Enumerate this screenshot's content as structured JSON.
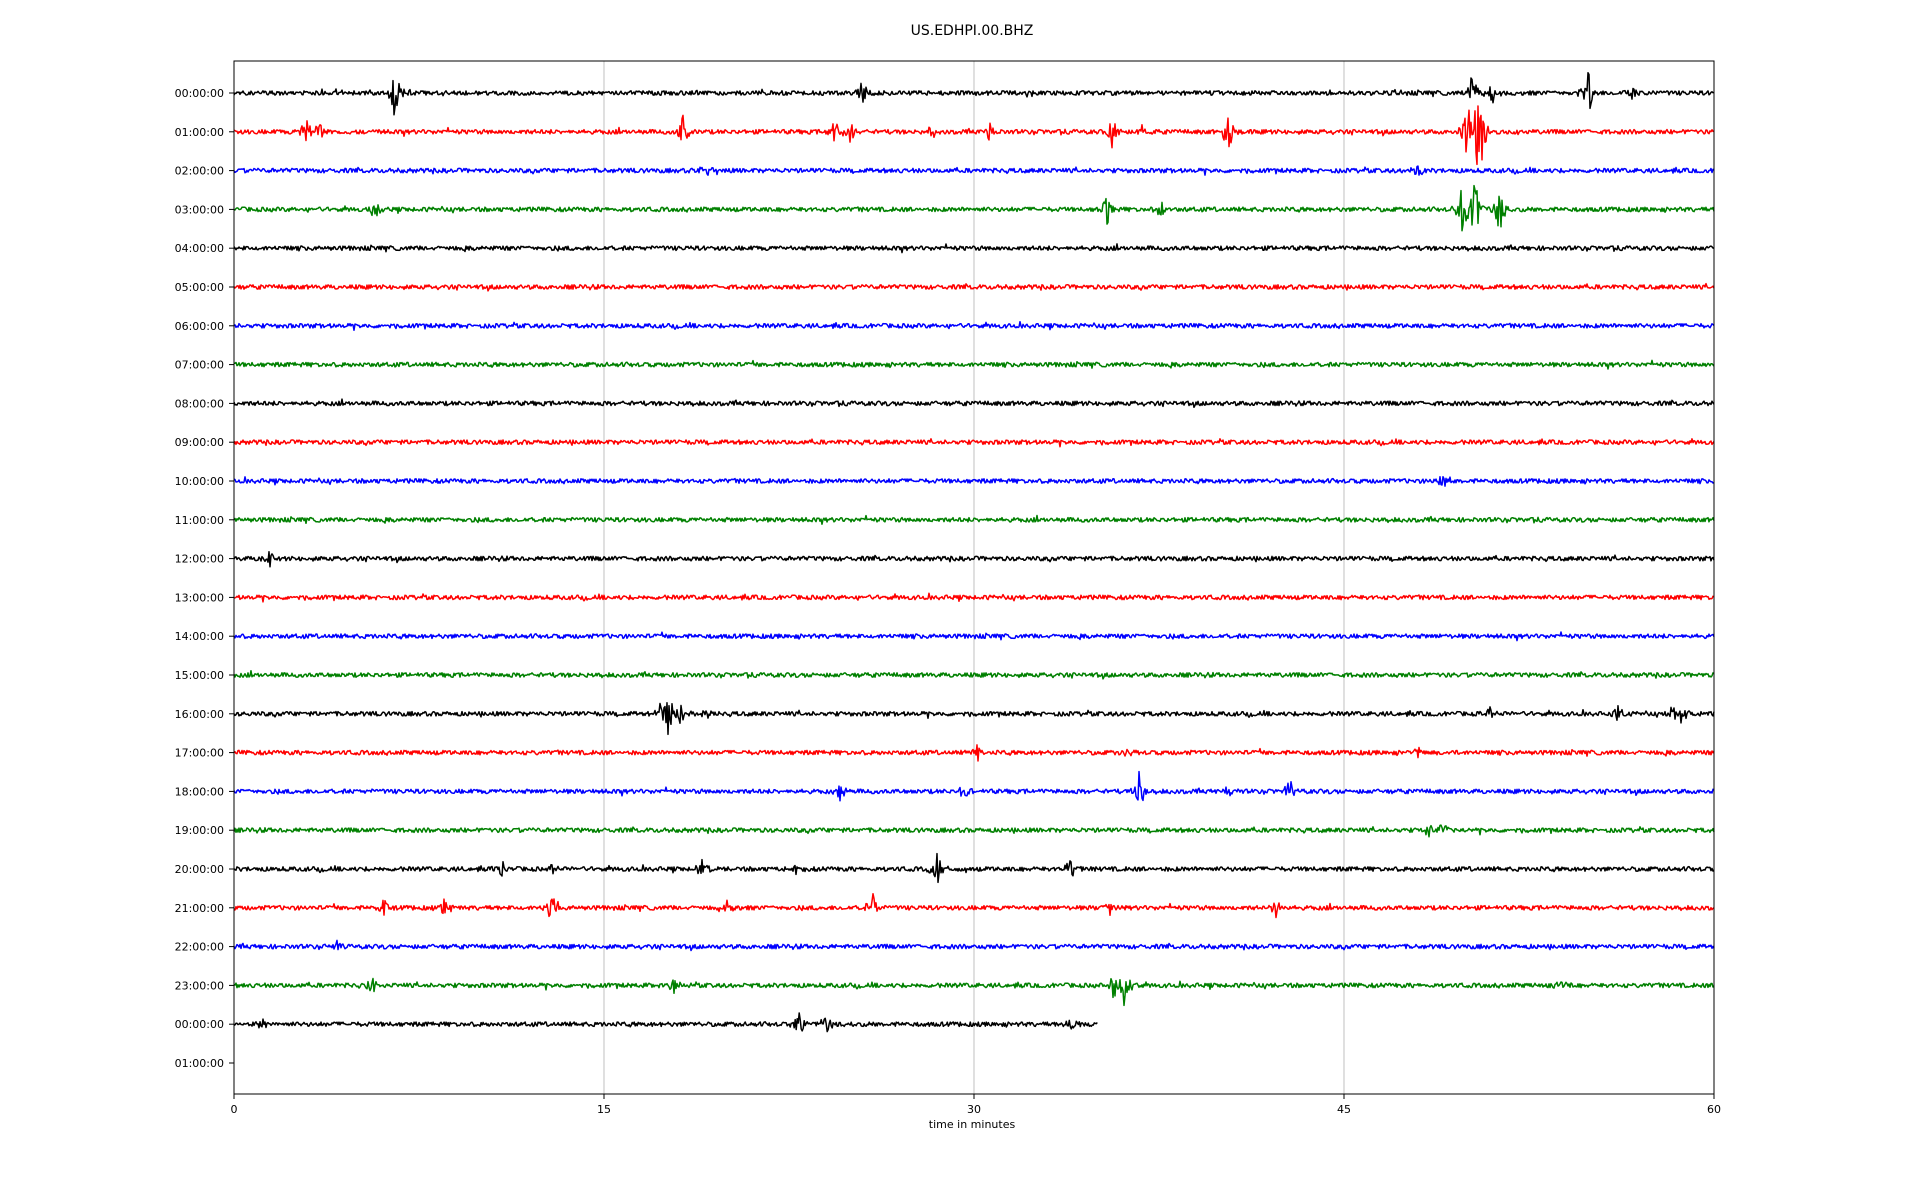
{
  "chart_data": {
    "type": "line",
    "title": "US.EDHPI.00.BHZ",
    "xlabel": "time in minutes",
    "ylabel": "",
    "xlim": [
      0,
      60
    ],
    "x_ticks": [
      "0",
      "15",
      "30",
      "45",
      "60"
    ],
    "x_grid": true,
    "y_grid": false,
    "legend": "none",
    "series_colors": [
      "#000000",
      "#ff0000",
      "#0000ff",
      "#008000"
    ],
    "rows": [
      {
        "label": "00:00:00",
        "color": "#000000",
        "end_minute": 60,
        "events": [
          {
            "t": 6.5,
            "amp": 30
          },
          {
            "t": 25.5,
            "amp": 16
          },
          {
            "t": 50.2,
            "amp": 20
          },
          {
            "t": 51.0,
            "amp": 14
          },
          {
            "t": 54.9,
            "amp": 26
          },
          {
            "t": 56.7,
            "amp": 8
          }
        ]
      },
      {
        "label": "01:00:00",
        "color": "#ff0000",
        "end_minute": 60,
        "events": [
          {
            "t": 2.9,
            "amp": 16
          },
          {
            "t": 3.5,
            "amp": 14
          },
          {
            "t": 18.2,
            "amp": 18
          },
          {
            "t": 24.4,
            "amp": 16
          },
          {
            "t": 25.0,
            "amp": 18
          },
          {
            "t": 28.3,
            "amp": 10
          },
          {
            "t": 30.6,
            "amp": 12
          },
          {
            "t": 35.6,
            "amp": 18
          },
          {
            "t": 36.9,
            "amp": 10
          },
          {
            "t": 40.3,
            "amp": 22
          },
          {
            "t": 50.0,
            "amp": 34
          },
          {
            "t": 50.5,
            "amp": 70
          }
        ]
      },
      {
        "label": "02:00:00",
        "color": "#0000ff",
        "end_minute": 60,
        "events": [
          {
            "t": 19.0,
            "amp": 8
          },
          {
            "t": 19.5,
            "amp": 10
          },
          {
            "t": 48.0,
            "amp": 8
          }
        ]
      },
      {
        "label": "03:00:00",
        "color": "#008000",
        "end_minute": 60,
        "events": [
          {
            "t": 5.7,
            "amp": 14
          },
          {
            "t": 35.4,
            "amp": 18
          },
          {
            "t": 37.6,
            "amp": 12
          },
          {
            "t": 49.8,
            "amp": 34
          },
          {
            "t": 50.3,
            "amp": 38
          },
          {
            "t": 51.3,
            "amp": 28
          }
        ]
      },
      {
        "label": "04:00:00",
        "color": "#000000",
        "end_minute": 60,
        "events": []
      },
      {
        "label": "05:00:00",
        "color": "#ff0000",
        "end_minute": 60,
        "events": []
      },
      {
        "label": "06:00:00",
        "color": "#0000ff",
        "end_minute": 60,
        "events": []
      },
      {
        "label": "07:00:00",
        "color": "#008000",
        "end_minute": 60,
        "events": []
      },
      {
        "label": "08:00:00",
        "color": "#000000",
        "end_minute": 60,
        "events": []
      },
      {
        "label": "09:00:00",
        "color": "#ff0000",
        "end_minute": 60,
        "events": []
      },
      {
        "label": "10:00:00",
        "color": "#0000ff",
        "end_minute": 60,
        "events": [
          {
            "t": 49.0,
            "amp": 7
          }
        ]
      },
      {
        "label": "11:00:00",
        "color": "#008000",
        "end_minute": 60,
        "events": []
      },
      {
        "label": "12:00:00",
        "color": "#000000",
        "end_minute": 60,
        "events": [
          {
            "t": 1.4,
            "amp": 10
          }
        ]
      },
      {
        "label": "13:00:00",
        "color": "#ff0000",
        "end_minute": 60,
        "events": []
      },
      {
        "label": "14:00:00",
        "color": "#0000ff",
        "end_minute": 60,
        "events": []
      },
      {
        "label": "15:00:00",
        "color": "#008000",
        "end_minute": 60,
        "events": []
      },
      {
        "label": "16:00:00",
        "color": "#000000",
        "end_minute": 60,
        "events": [
          {
            "t": 17.3,
            "amp": 16
          },
          {
            "t": 17.6,
            "amp": 34
          },
          {
            "t": 18.1,
            "amp": 14
          },
          {
            "t": 19.2,
            "amp": 10
          },
          {
            "t": 50.9,
            "amp": 10
          },
          {
            "t": 56.1,
            "amp": 12
          },
          {
            "t": 58.3,
            "amp": 10
          },
          {
            "t": 58.7,
            "amp": 10
          }
        ]
      },
      {
        "label": "17:00:00",
        "color": "#ff0000",
        "end_minute": 60,
        "events": [
          {
            "t": 30.1,
            "amp": 10
          },
          {
            "t": 36.2,
            "amp": 12
          },
          {
            "t": 48.0,
            "amp": 6
          }
        ]
      },
      {
        "label": "18:00:00",
        "color": "#0000ff",
        "end_minute": 60,
        "events": [
          {
            "t": 24.6,
            "amp": 12
          },
          {
            "t": 29.6,
            "amp": 10
          },
          {
            "t": 36.7,
            "amp": 28
          },
          {
            "t": 40.3,
            "amp": 8
          },
          {
            "t": 42.8,
            "amp": 12
          }
        ]
      },
      {
        "label": "19:00:00",
        "color": "#008000",
        "end_minute": 60,
        "events": [
          {
            "t": 48.4,
            "amp": 8
          },
          {
            "t": 49.0,
            "amp": 10
          }
        ]
      },
      {
        "label": "20:00:00",
        "color": "#000000",
        "end_minute": 60,
        "events": [
          {
            "t": 10.9,
            "amp": 8
          },
          {
            "t": 12.9,
            "amp": 8
          },
          {
            "t": 19.0,
            "amp": 12
          },
          {
            "t": 22.8,
            "amp": 10
          },
          {
            "t": 28.5,
            "amp": 18
          },
          {
            "t": 33.9,
            "amp": 12
          }
        ]
      },
      {
        "label": "21:00:00",
        "color": "#ff0000",
        "end_minute": 60,
        "events": [
          {
            "t": 6.1,
            "amp": 10
          },
          {
            "t": 8.5,
            "amp": 14
          },
          {
            "t": 12.9,
            "amp": 18
          },
          {
            "t": 20.0,
            "amp": 8
          },
          {
            "t": 25.9,
            "amp": 16
          },
          {
            "t": 35.5,
            "amp": 12
          },
          {
            "t": 42.2,
            "amp": 16
          }
        ]
      },
      {
        "label": "22:00:00",
        "color": "#0000ff",
        "end_minute": 60,
        "events": [
          {
            "t": 4.1,
            "amp": 8
          }
        ]
      },
      {
        "label": "23:00:00",
        "color": "#008000",
        "end_minute": 60,
        "events": [
          {
            "t": 5.6,
            "amp": 14
          },
          {
            "t": 17.8,
            "amp": 8
          },
          {
            "t": 35.7,
            "amp": 22
          },
          {
            "t": 36.1,
            "amp": 26
          },
          {
            "t": 53.8,
            "amp": 6
          }
        ]
      },
      {
        "label": "00:00:00",
        "color": "#000000",
        "end_minute": 35,
        "events": [
          {
            "t": 1.2,
            "amp": 8
          },
          {
            "t": 22.9,
            "amp": 20
          },
          {
            "t": 24.0,
            "amp": 14
          },
          {
            "t": 34.0,
            "amp": 12
          }
        ]
      },
      {
        "label": "01:00:00",
        "color": "#000000",
        "end_minute": 0,
        "events": []
      }
    ]
  }
}
